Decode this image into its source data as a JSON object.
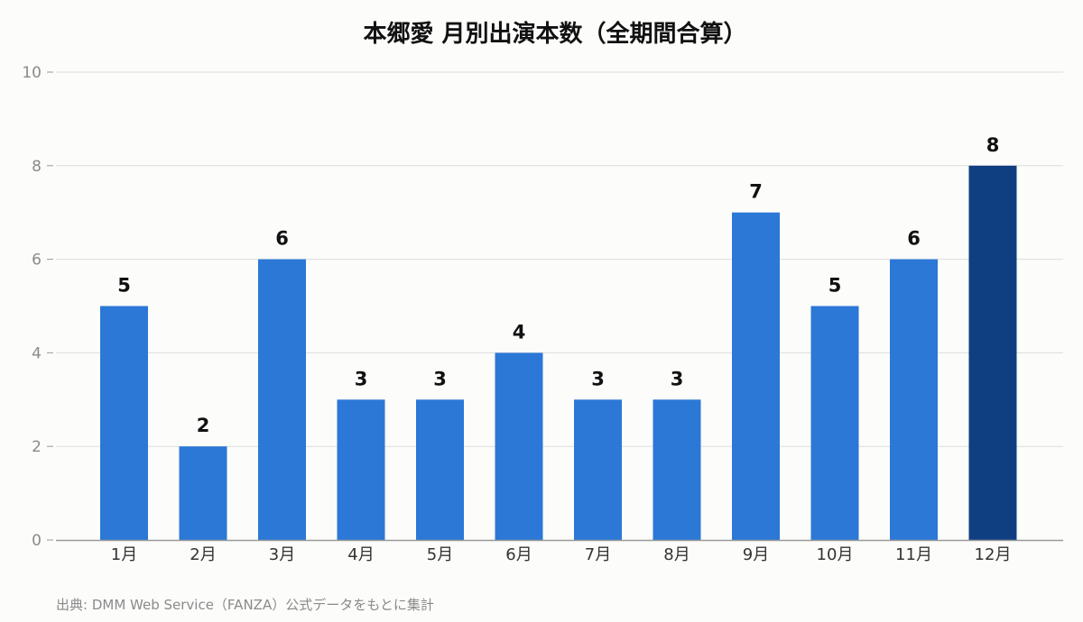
{
  "chart_data": {
    "type": "bar",
    "title": "本郷愛 月別出演本数（全期間合算）",
    "categories": [
      "1月",
      "2月",
      "3月",
      "4月",
      "5月",
      "6月",
      "7月",
      "8月",
      "9月",
      "10月",
      "11月",
      "12月"
    ],
    "values": [
      5,
      2,
      6,
      3,
      3,
      4,
      3,
      3,
      7,
      5,
      6,
      8
    ],
    "ylim": [
      0,
      10
    ],
    "yticks": [
      0,
      2,
      4,
      6,
      8,
      10
    ],
    "grid": true,
    "legend": "none",
    "colors": {
      "bar": "#2b78d6",
      "highlight": "#0f3f80",
      "grid": "#dddddd",
      "axis": "#999999"
    },
    "highlight_index": 11,
    "source": "出典: DMM Web Service（FANZA）公式データをもとに集計"
  }
}
